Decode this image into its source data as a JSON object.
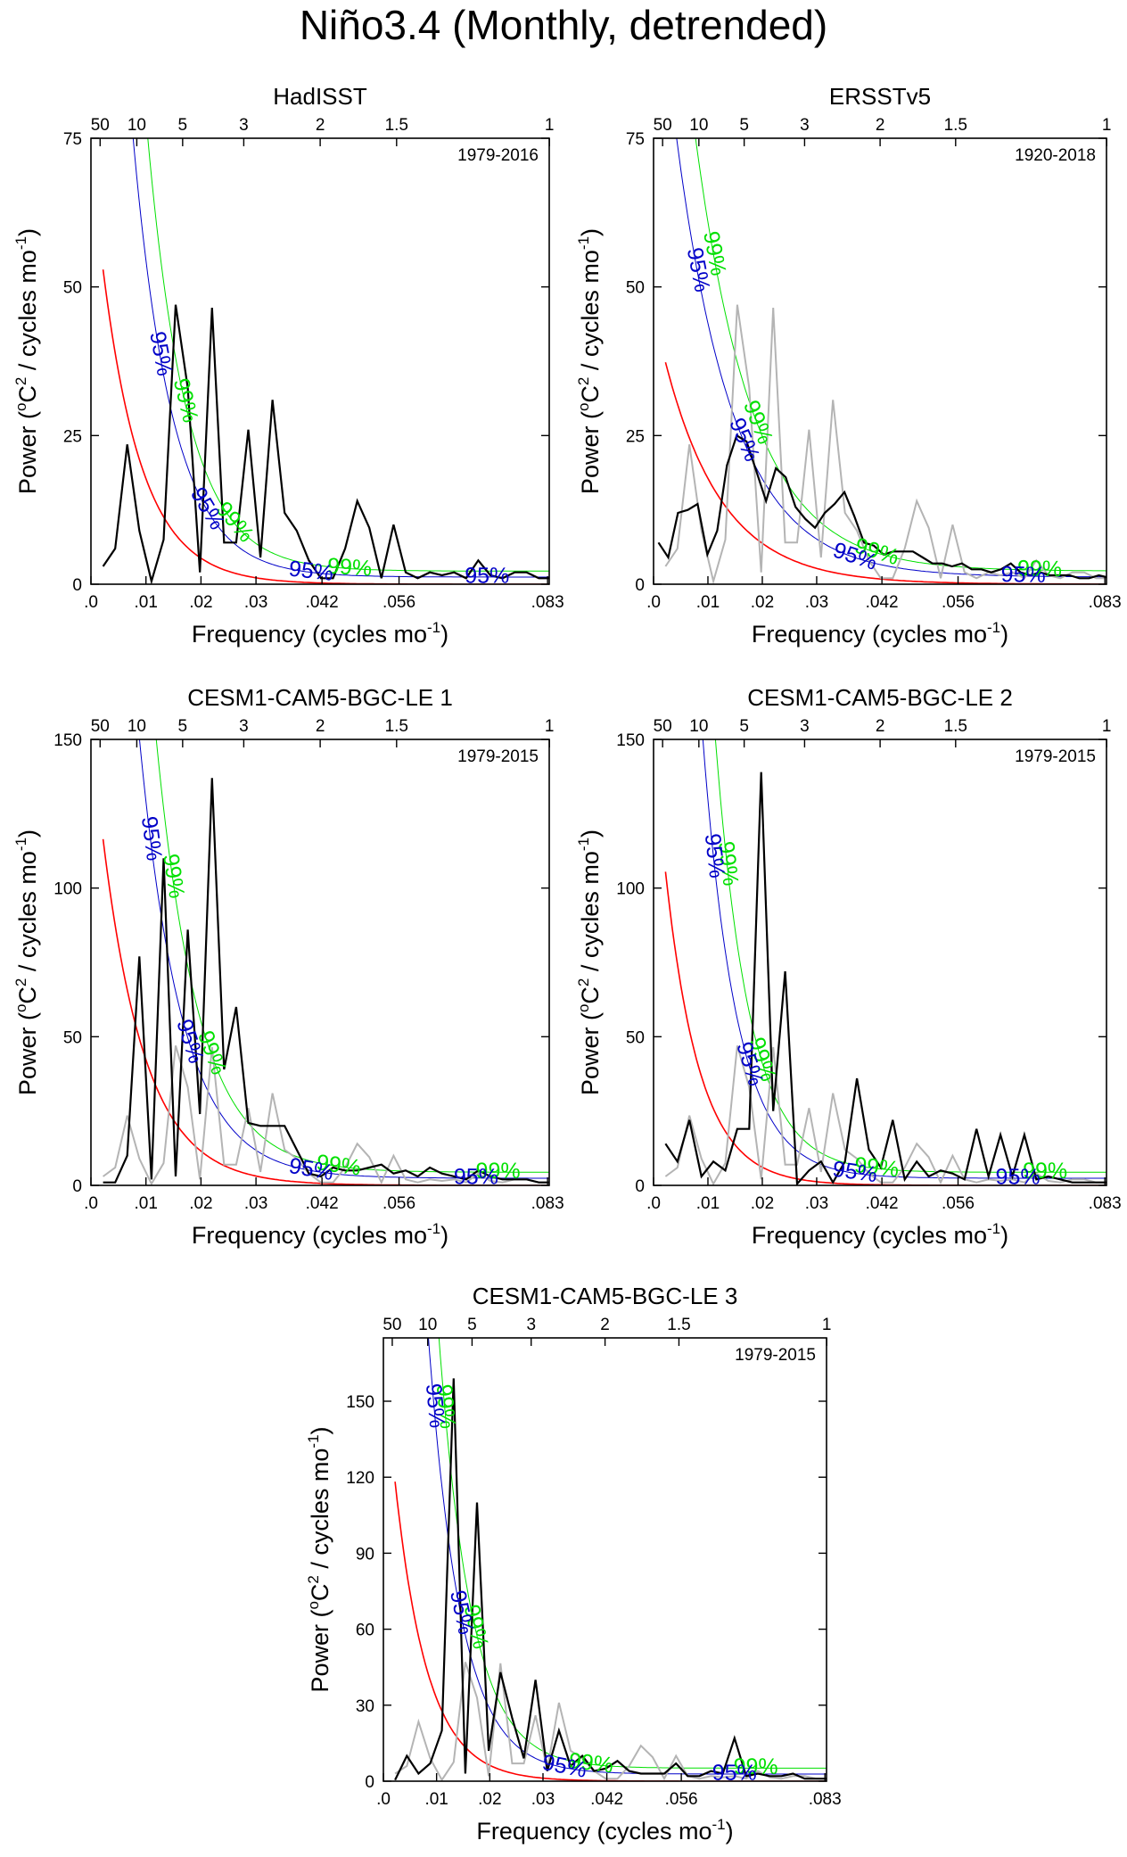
{
  "figure": {
    "title": "Niño3.4 (Monthly, detrended)",
    "xlabel": "Frequency (cycles mo",
    "xlabel_sup": "-1",
    "xlabel_end": ")",
    "ylabel_a": "Power (",
    "ylabel_sup1": "o",
    "ylabel_b": "C",
    "ylabel_sup2": "2",
    "ylabel_c": " / cycles mo",
    "ylabel_sup3": "-1",
    "ylabel_d": ")",
    "colors": {
      "spectrum": "#000000",
      "reference": "#b4b4b4",
      "red_noise": "#ff0000",
      "ci95": "#0000c8",
      "ci99": "#00e000"
    },
    "x_ticks": [
      ".0",
      ".01",
      ".02",
      ".03",
      ".042",
      ".056",
      ".083"
    ],
    "x_tick_values": [
      0.0,
      0.01,
      0.02,
      0.03,
      0.042,
      0.056,
      0.083
    ],
    "period_ticks": [
      "50",
      "10",
      "5",
      "3",
      "2",
      "1.5",
      "1"
    ],
    "period_values": [
      50,
      10,
      5,
      3,
      2,
      1.5,
      1
    ],
    "ci95_label": "95%",
    "ci99_label": "99%"
  },
  "chart_data": [
    {
      "type": "line",
      "title": "HadISST",
      "period_label": "1979-2016",
      "xlim": [
        0,
        0.0833
      ],
      "ylim": [
        0,
        75
      ],
      "yticks": [
        0,
        25,
        50,
        75
      ],
      "red_noise_amp": 72,
      "red_noise_decay": 140,
      "ci95_factor": 3.0,
      "ci99_factor": 4.3,
      "ci95_labels_at": [
        0.0125,
        0.021,
        0.04,
        0.072
      ],
      "ci99_labels_at": [
        0.017,
        0.026,
        0.047
      ],
      "series": [
        {
          "name": "spectrum",
          "x": [
            0.0022,
            0.0044,
            0.0066,
            0.0088,
            0.011,
            0.0132,
            0.0154,
            0.0176,
            0.0198,
            0.022,
            0.0242,
            0.0264,
            0.0286,
            0.0308,
            0.033,
            0.0352,
            0.0374,
            0.0396,
            0.0418,
            0.044,
            0.0462,
            0.0484,
            0.0506,
            0.0528,
            0.055,
            0.0572,
            0.0594,
            0.0616,
            0.0638,
            0.066,
            0.0682,
            0.0704,
            0.0726,
            0.0748,
            0.077,
            0.0792,
            0.0814,
            0.0833
          ],
          "values": [
            3,
            6,
            23.5,
            9,
            0.5,
            7.5,
            47,
            33,
            2,
            46.5,
            7,
            7,
            26,
            4.5,
            31,
            12,
            9,
            4,
            1,
            1,
            6,
            14,
            9.5,
            1,
            10,
            2,
            1,
            2,
            1.5,
            2,
            1,
            4,
            1.5,
            1,
            2,
            2,
            1,
            1
          ]
        }
      ]
    },
    {
      "type": "line",
      "title": "ERSSTv5",
      "period_label": "1920-2018",
      "xlim": [
        0,
        0.0833
      ],
      "ylim": [
        0,
        75
      ],
      "yticks": [
        0,
        25,
        50,
        75
      ],
      "red_noise_amp": 46,
      "red_noise_decay": 95,
      "ci95_factor": 2.4,
      "ci99_factor": 3.3,
      "ci95_labels_at": [
        0.008,
        0.0165,
        0.037,
        0.068
      ],
      "ci99_labels_at": [
        0.011,
        0.019,
        0.041,
        0.071
      ],
      "series": [
        {
          "name": "reference",
          "x": [
            0.0022,
            0.0044,
            0.0066,
            0.0088,
            0.011,
            0.0132,
            0.0154,
            0.0176,
            0.0198,
            0.022,
            0.0242,
            0.0264,
            0.0286,
            0.0308,
            0.033,
            0.0352,
            0.0374,
            0.0396,
            0.0418,
            0.044,
            0.0462,
            0.0484,
            0.0506,
            0.0528,
            0.055,
            0.0572,
            0.0594,
            0.0616,
            0.0638,
            0.066,
            0.0682,
            0.0704,
            0.0726,
            0.0748,
            0.077,
            0.0792,
            0.0814,
            0.0833
          ],
          "values": [
            3,
            6,
            23.5,
            9,
            0.5,
            7.5,
            47,
            33,
            2,
            46.5,
            7,
            7,
            26,
            4.5,
            31,
            12,
            9,
            4,
            1,
            1,
            6,
            14,
            9.5,
            1,
            10,
            2,
            1,
            2,
            1.5,
            2,
            1,
            4,
            1.5,
            1,
            2,
            2,
            1,
            1
          ]
        },
        {
          "name": "spectrum",
          "x": [
            0.0009,
            0.0027,
            0.0045,
            0.0063,
            0.0081,
            0.0099,
            0.0117,
            0.0135,
            0.0153,
            0.0171,
            0.0189,
            0.0207,
            0.0225,
            0.0243,
            0.0261,
            0.0279,
            0.0297,
            0.0315,
            0.0333,
            0.0351,
            0.0369,
            0.0387,
            0.0405,
            0.0423,
            0.0441,
            0.0459,
            0.0477,
            0.0495,
            0.0513,
            0.0531,
            0.0549,
            0.0567,
            0.0585,
            0.0603,
            0.0621,
            0.0639,
            0.0657,
            0.0675,
            0.0693,
            0.0711,
            0.0729,
            0.0747,
            0.0765,
            0.0783,
            0.0801,
            0.0819,
            0.0833
          ],
          "values": [
            7,
            4.5,
            12,
            12.5,
            13.5,
            5,
            9,
            20,
            25,
            24,
            19,
            14,
            19.5,
            18,
            13,
            11,
            9.5,
            12,
            13.5,
            15.5,
            11.5,
            7,
            6.5,
            5,
            5.5,
            5.5,
            5.5,
            4.5,
            3.5,
            3.5,
            3,
            3.5,
            2.5,
            2.5,
            2,
            2.5,
            3.5,
            2,
            1.5,
            2,
            1.5,
            1.5,
            1.5,
            1,
            1,
            1.5,
            1.2
          ]
        }
      ]
    },
    {
      "type": "line",
      "title": "CESM1-CAM5-BGC-LE 1",
      "period_label": "1979-2015",
      "xlim": [
        0,
        0.0833
      ],
      "ylim": [
        0,
        150
      ],
      "yticks": [
        0,
        50,
        100,
        150
      ],
      "red_noise_amp": 155,
      "red_noise_decay": 130,
      "ci95_factor": 3.0,
      "ci99_factor": 4.4,
      "ci95_labels_at": [
        0.0108,
        0.0178,
        0.04,
        0.07
      ],
      "ci99_labels_at": [
        0.0148,
        0.0218,
        0.045,
        0.074
      ],
      "series": [
        {
          "name": "reference",
          "x": [
            0.0022,
            0.0044,
            0.0066,
            0.0088,
            0.011,
            0.0132,
            0.0154,
            0.0176,
            0.0198,
            0.022,
            0.0242,
            0.0264,
            0.0286,
            0.0308,
            0.033,
            0.0352,
            0.0374,
            0.0396,
            0.0418,
            0.044,
            0.0462,
            0.0484,
            0.0506,
            0.0528,
            0.055,
            0.0572,
            0.0594,
            0.0616,
            0.0638,
            0.066,
            0.0682,
            0.0704,
            0.0726,
            0.0748,
            0.077,
            0.0792,
            0.0814,
            0.0833
          ],
          "values": [
            3,
            6,
            23.5,
            9,
            0.5,
            7.5,
            47,
            33,
            2,
            46.5,
            7,
            7,
            26,
            4.5,
            31,
            12,
            9,
            4,
            1,
            1,
            6,
            14,
            9.5,
            1,
            10,
            2,
            1,
            2,
            1.5,
            2,
            1,
            4,
            1.5,
            1,
            2,
            2,
            1,
            1
          ]
        },
        {
          "name": "spectrum",
          "x": [
            0.0022,
            0.0044,
            0.0066,
            0.0088,
            0.011,
            0.0132,
            0.0154,
            0.0176,
            0.0198,
            0.022,
            0.0242,
            0.0264,
            0.0286,
            0.0308,
            0.033,
            0.0352,
            0.0374,
            0.0396,
            0.0418,
            0.044,
            0.0462,
            0.0484,
            0.0506,
            0.0528,
            0.055,
            0.0572,
            0.0594,
            0.0616,
            0.0638,
            0.066,
            0.0682,
            0.0704,
            0.0726,
            0.0748,
            0.077,
            0.0792,
            0.0814,
            0.0833
          ],
          "values": [
            1,
            1,
            10,
            77,
            2,
            110,
            3,
            86,
            24,
            137,
            39,
            60,
            21,
            20,
            20,
            20,
            12,
            4,
            3,
            6,
            5,
            5,
            6,
            7,
            4,
            5,
            3,
            6,
            4,
            3,
            2,
            5,
            3,
            2,
            2,
            2,
            1,
            1
          ]
        }
      ]
    },
    {
      "type": "line",
      "title": "CESM1-CAM5-BGC-LE 2",
      "period_label": "1979-2015",
      "xlim": [
        0,
        0.0833
      ],
      "ylim": [
        0,
        150
      ],
      "yticks": [
        0,
        50,
        100,
        150
      ],
      "red_noise_amp": 150,
      "red_noise_decay": 160,
      "ci95_factor": 4.2,
      "ci99_factor": 6.0,
      "ci95_labels_at": [
        0.011,
        0.0175,
        0.037,
        0.067
      ],
      "ci99_labels_at": [
        0.0135,
        0.0198,
        0.041,
        0.072
      ],
      "series": [
        {
          "name": "reference",
          "x": [
            0.0022,
            0.0044,
            0.0066,
            0.0088,
            0.011,
            0.0132,
            0.0154,
            0.0176,
            0.0198,
            0.022,
            0.0242,
            0.0264,
            0.0286,
            0.0308,
            0.033,
            0.0352,
            0.0374,
            0.0396,
            0.0418,
            0.044,
            0.0462,
            0.0484,
            0.0506,
            0.0528,
            0.055,
            0.0572,
            0.0594,
            0.0616,
            0.0638,
            0.066,
            0.0682,
            0.0704,
            0.0726,
            0.0748,
            0.077,
            0.0792,
            0.0814,
            0.0833
          ],
          "values": [
            3,
            6,
            23.5,
            9,
            0.5,
            7.5,
            47,
            33,
            2,
            46.5,
            7,
            7,
            26,
            4.5,
            31,
            12,
            9,
            4,
            1,
            1,
            6,
            14,
            9.5,
            1,
            10,
            2,
            1,
            2,
            1.5,
            2,
            1,
            4,
            1.5,
            1,
            2,
            2,
            1,
            1
          ]
        },
        {
          "name": "spectrum",
          "x": [
            0.0022,
            0.0044,
            0.0066,
            0.0088,
            0.011,
            0.0132,
            0.0154,
            0.0176,
            0.0198,
            0.022,
            0.0242,
            0.0264,
            0.0286,
            0.0308,
            0.033,
            0.0352,
            0.0374,
            0.0396,
            0.0418,
            0.044,
            0.0462,
            0.0484,
            0.0506,
            0.0528,
            0.055,
            0.0572,
            0.0594,
            0.0616,
            0.0638,
            0.066,
            0.0682,
            0.0704,
            0.0726,
            0.0748,
            0.077,
            0.0792,
            0.0814,
            0.0833
          ],
          "values": [
            14,
            8,
            22,
            3,
            8,
            5,
            19,
            19,
            139,
            25,
            72,
            0.5,
            5,
            8,
            1,
            8,
            36,
            12,
            6,
            22,
            2,
            8,
            3,
            5,
            4,
            2,
            19,
            3,
            17,
            3,
            17,
            2,
            3,
            2,
            1,
            1,
            1,
            1
          ]
        }
      ]
    },
    {
      "type": "line",
      "title": "CESM1-CAM5-BGC-LE 3",
      "period_label": "1979-2015",
      "xlim": [
        0,
        0.0833
      ],
      "ylim": [
        0,
        175
      ],
      "yticks": [
        0,
        30,
        60,
        90,
        120,
        150
      ],
      "red_noise_amp": 170,
      "red_noise_decay": 165,
      "ci95_factor": 4.1,
      "ci99_factor": 5.6,
      "ci95_labels_at": [
        0.0095,
        0.0145,
        0.034,
        0.066
      ],
      "ci99_labels_at": [
        0.0115,
        0.0172,
        0.039,
        0.07
      ],
      "series": [
        {
          "name": "reference",
          "x": [
            0.0022,
            0.0044,
            0.0066,
            0.0088,
            0.011,
            0.0132,
            0.0154,
            0.0176,
            0.0198,
            0.022,
            0.0242,
            0.0264,
            0.0286,
            0.0308,
            0.033,
            0.0352,
            0.0374,
            0.0396,
            0.0418,
            0.044,
            0.0462,
            0.0484,
            0.0506,
            0.0528,
            0.055,
            0.0572,
            0.0594,
            0.0616,
            0.0638,
            0.066,
            0.0682,
            0.0704,
            0.0726,
            0.0748,
            0.077,
            0.0792,
            0.0814,
            0.0833
          ],
          "values": [
            3,
            6,
            23.5,
            9,
            0.5,
            7.5,
            47,
            33,
            2,
            46.5,
            7,
            7,
            26,
            4.5,
            31,
            12,
            9,
            4,
            1,
            1,
            6,
            14,
            9.5,
            1,
            10,
            2,
            1,
            2,
            1.5,
            2,
            1,
            4,
            1.5,
            1,
            2,
            2,
            1,
            1
          ]
        },
        {
          "name": "spectrum",
          "x": [
            0.0022,
            0.0044,
            0.0066,
            0.0088,
            0.011,
            0.0132,
            0.0154,
            0.0176,
            0.0198,
            0.022,
            0.0242,
            0.0264,
            0.0286,
            0.0308,
            0.033,
            0.0352,
            0.0374,
            0.0396,
            0.0418,
            0.044,
            0.0462,
            0.0484,
            0.0506,
            0.0528,
            0.055,
            0.0572,
            0.0594,
            0.0616,
            0.0638,
            0.066,
            0.0682,
            0.0704,
            0.0726,
            0.0748,
            0.077,
            0.0792,
            0.0814,
            0.0833
          ],
          "values": [
            0.5,
            10,
            3,
            7,
            20,
            159,
            3,
            110,
            12,
            43,
            25,
            9,
            40,
            4,
            20,
            6,
            10,
            4,
            5,
            8,
            4,
            3,
            3,
            3,
            7,
            2,
            2,
            4,
            3,
            17,
            2,
            3,
            2,
            2,
            3,
            1,
            1,
            1
          ]
        }
      ]
    }
  ]
}
